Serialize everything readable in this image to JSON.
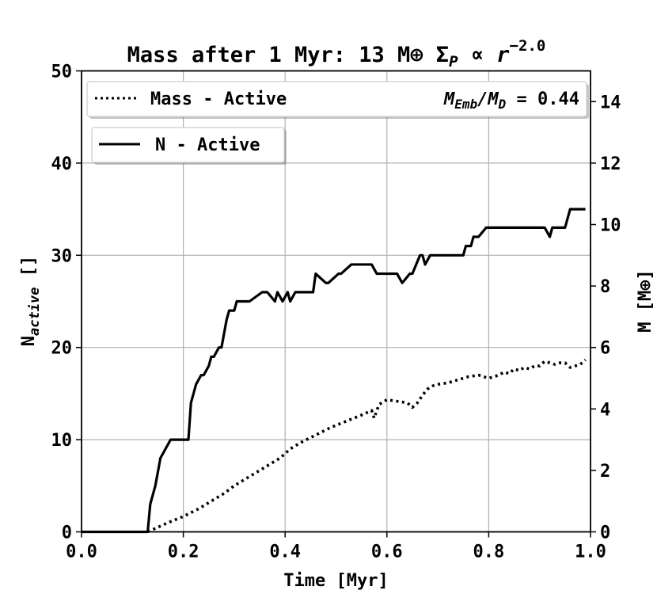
{
  "chart_data": {
    "type": "line",
    "title": "Mass after 1 Myr: 13 M⊕ Σ",
    "title_subscript": "P",
    "title_propto": " ∝ ",
    "title_r": "r",
    "title_exponent": "−2.0",
    "xlabel": "Time [Myr]",
    "ylabel_left": "N",
    "ylabel_left_subscript": "active",
    "ylabel_left_unit": " []",
    "ylabel_right": "M [M⊕]",
    "xlim": [
      0,
      1
    ],
    "ylim_left": [
      0,
      50
    ],
    "ylim_right": [
      0,
      15
    ],
    "x_ticks": [
      "0.0",
      "0.2",
      "0.4",
      "0.6",
      "0.8",
      "1.0"
    ],
    "y_left_ticks": [
      "0",
      "10",
      "20",
      "30",
      "40",
      "50"
    ],
    "y_right_ticks": [
      "0",
      "2",
      "4",
      "6",
      "8",
      "10",
      "12",
      "14"
    ],
    "grid": true,
    "legend": {
      "mass_label": "Mass - Active",
      "ratio_prefix": "M",
      "ratio_sub1": "Emb",
      "ratio_mid": "/M",
      "ratio_sub2": "D",
      "ratio_value": " = 0.44",
      "n_label": "N - Active",
      "placement": "top-left"
    },
    "series": [
      {
        "name": "N - Active",
        "axis": "left",
        "style": "solid",
        "x": [
          0.0,
          0.13,
          0.135,
          0.145,
          0.155,
          0.165,
          0.175,
          0.18,
          0.2,
          0.21,
          0.215,
          0.225,
          0.235,
          0.24,
          0.25,
          0.255,
          0.26,
          0.27,
          0.275,
          0.285,
          0.29,
          0.3,
          0.305,
          0.315,
          0.32,
          0.33,
          0.355,
          0.365,
          0.38,
          0.385,
          0.395,
          0.405,
          0.41,
          0.42,
          0.435,
          0.445,
          0.455,
          0.46,
          0.48,
          0.485,
          0.505,
          0.51,
          0.53,
          0.54,
          0.55,
          0.57,
          0.58,
          0.59,
          0.62,
          0.63,
          0.645,
          0.65,
          0.665,
          0.67,
          0.675,
          0.685,
          0.69,
          0.705,
          0.735,
          0.75,
          0.755,
          0.765,
          0.77,
          0.78,
          0.795,
          0.8,
          0.81,
          0.815,
          0.82,
          0.88,
          0.9,
          0.91,
          0.92,
          0.925,
          0.935,
          0.95,
          0.96,
          0.97,
          0.99
        ],
        "values": [
          0,
          0,
          3,
          5,
          8,
          9,
          10,
          10,
          10,
          10,
          14,
          16,
          17,
          17,
          18,
          19,
          19,
          20,
          20,
          23,
          24,
          24,
          25,
          25,
          25,
          25,
          26,
          26,
          25,
          26,
          25,
          26,
          25,
          26,
          26,
          26,
          26,
          28,
          27,
          27,
          28,
          28,
          29,
          29,
          29,
          29,
          28,
          28,
          28,
          27,
          28,
          28,
          30,
          30,
          29,
          30,
          30,
          30,
          30,
          30,
          31,
          31,
          32,
          32,
          33,
          33,
          33,
          33,
          33,
          33,
          33,
          33,
          32,
          33,
          33,
          33,
          35,
          35,
          35
        ]
      },
      {
        "name": "Mass - Active",
        "axis": "right",
        "style": "dotted",
        "x": [
          0.13,
          0.15,
          0.17,
          0.2,
          0.23,
          0.25,
          0.28,
          0.3,
          0.33,
          0.36,
          0.39,
          0.41,
          0.43,
          0.46,
          0.49,
          0.52,
          0.55,
          0.57,
          0.575,
          0.58,
          0.585,
          0.6,
          0.62,
          0.64,
          0.65,
          0.66,
          0.67,
          0.68,
          0.69,
          0.7,
          0.72,
          0.74,
          0.76,
          0.78,
          0.8,
          0.81,
          0.82,
          0.83,
          0.84,
          0.85,
          0.86,
          0.87,
          0.88,
          0.89,
          0.9,
          0.91,
          0.92,
          0.93,
          0.94,
          0.95,
          0.96,
          0.97,
          0.98,
          0.99
        ],
        "values": [
          0.0,
          0.15,
          0.3,
          0.5,
          0.75,
          0.95,
          1.25,
          1.5,
          1.8,
          2.1,
          2.4,
          2.7,
          2.9,
          3.15,
          3.4,
          3.6,
          3.8,
          3.95,
          3.7,
          3.95,
          4.15,
          4.3,
          4.25,
          4.2,
          4.05,
          4.2,
          4.45,
          4.65,
          4.75,
          4.8,
          4.85,
          4.95,
          5.05,
          5.1,
          5.0,
          5.05,
          5.1,
          5.2,
          5.15,
          5.3,
          5.25,
          5.35,
          5.3,
          5.4,
          5.4,
          5.55,
          5.5,
          5.45,
          5.5,
          5.5,
          5.35,
          5.4,
          5.45,
          5.6
        ]
      }
    ]
  }
}
